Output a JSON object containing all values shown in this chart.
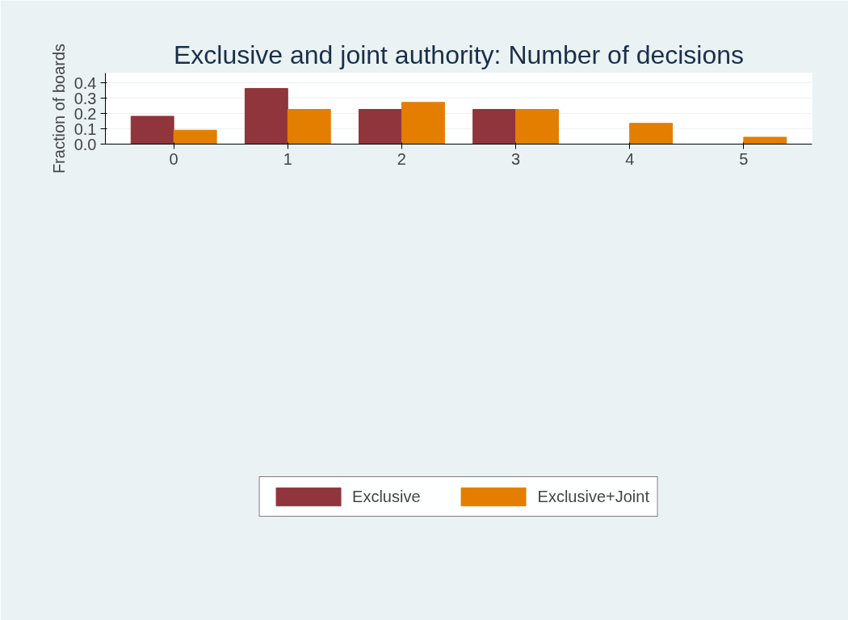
{
  "chart_data": {
    "type": "bar",
    "title": "Exclusive and joint authority: Number of decisions",
    "ylabel": "Fraction of boards",
    "categories": [
      "0",
      "1",
      "2",
      "3",
      "4",
      "5"
    ],
    "series": [
      {
        "name": "Exclusive",
        "color": "#90353b",
        "values": [
          0.182,
          0.364,
          0.227,
          0.227,
          0,
          0
        ]
      },
      {
        "name": "Exclusive+Joint",
        "color": "#e37e00",
        "values": [
          0.091,
          0.227,
          0.273,
          0.227,
          0.136,
          0.045
        ]
      }
    ],
    "ylim": [
      0,
      0.465
    ],
    "yticks": [
      {
        "value": 0,
        "label": "0.0"
      },
      0.1,
      0.2,
      0.3,
      0.4
    ],
    "grid": "y",
    "legend": "bottom"
  }
}
